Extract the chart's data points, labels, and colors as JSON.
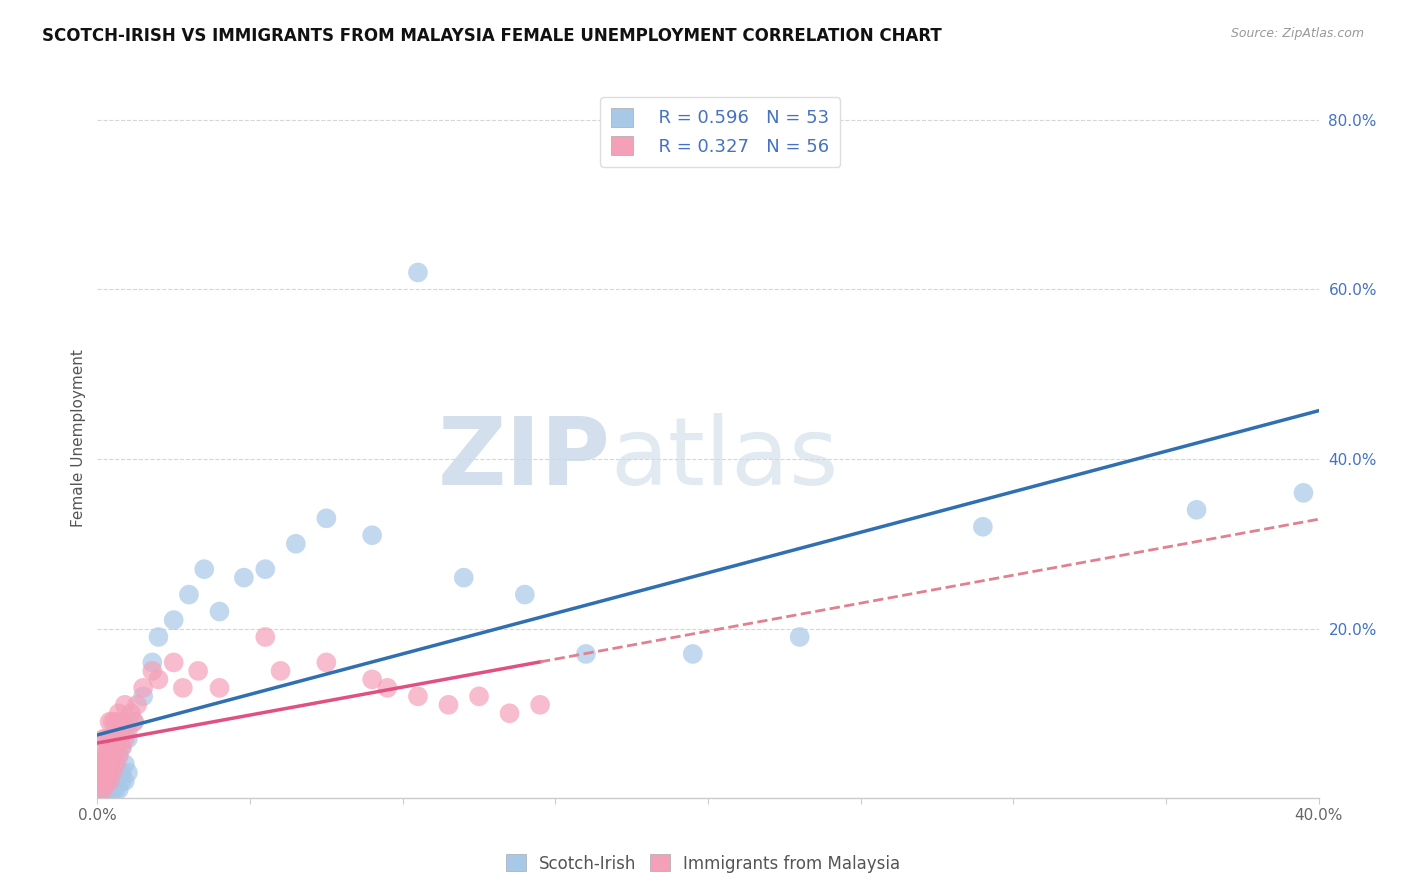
{
  "title": "SCOTCH-IRISH VS IMMIGRANTS FROM MALAYSIA FEMALE UNEMPLOYMENT CORRELATION CHART",
  "source": "Source: ZipAtlas.com",
  "ylabel": "Female Unemployment",
  "xlim": [
    0.0,
    0.4
  ],
  "ylim": [
    0.0,
    0.85
  ],
  "legend_r1": "R = 0.596",
  "legend_n1": "N = 53",
  "legend_r2": "R = 0.327",
  "legend_n2": "N = 56",
  "blue_color": "#a8c8e8",
  "pink_color": "#f4a0b8",
  "blue_line_color": "#3070b0",
  "pink_line_color": "#e05080",
  "pink_dash_color": "#e08090",
  "watermark_zip": "ZIP",
  "watermark_atlas": "atlas",
  "title_fontsize": 12,
  "axis_fontsize": 11,
  "tick_fontsize": 11,
  "blue_x": [
    0.001,
    0.001,
    0.001,
    0.002,
    0.002,
    0.002,
    0.002,
    0.003,
    0.003,
    0.003,
    0.003,
    0.004,
    0.004,
    0.004,
    0.005,
    0.005,
    0.005,
    0.005,
    0.006,
    0.006,
    0.006,
    0.007,
    0.007,
    0.007,
    0.008,
    0.008,
    0.008,
    0.009,
    0.009,
    0.01,
    0.01,
    0.012,
    0.015,
    0.018,
    0.02,
    0.025,
    0.03,
    0.035,
    0.04,
    0.048,
    0.055,
    0.065,
    0.075,
    0.09,
    0.105,
    0.12,
    0.14,
    0.16,
    0.195,
    0.23,
    0.29,
    0.36,
    0.395
  ],
  "blue_y": [
    0.01,
    0.02,
    0.03,
    0.01,
    0.02,
    0.03,
    0.04,
    0.01,
    0.02,
    0.03,
    0.04,
    0.01,
    0.02,
    0.04,
    0.01,
    0.02,
    0.03,
    0.05,
    0.01,
    0.02,
    0.04,
    0.01,
    0.03,
    0.05,
    0.02,
    0.03,
    0.06,
    0.02,
    0.04,
    0.03,
    0.07,
    0.09,
    0.12,
    0.16,
    0.19,
    0.21,
    0.24,
    0.27,
    0.22,
    0.26,
    0.27,
    0.3,
    0.33,
    0.31,
    0.62,
    0.26,
    0.24,
    0.17,
    0.17,
    0.19,
    0.32,
    0.34,
    0.36
  ],
  "pink_x": [
    0.001,
    0.001,
    0.001,
    0.001,
    0.002,
    0.002,
    0.002,
    0.002,
    0.002,
    0.002,
    0.002,
    0.003,
    0.003,
    0.003,
    0.003,
    0.003,
    0.004,
    0.004,
    0.004,
    0.004,
    0.004,
    0.005,
    0.005,
    0.005,
    0.005,
    0.006,
    0.006,
    0.006,
    0.007,
    0.007,
    0.007,
    0.008,
    0.008,
    0.009,
    0.009,
    0.01,
    0.011,
    0.012,
    0.013,
    0.015,
    0.018,
    0.02,
    0.025,
    0.028,
    0.033,
    0.04,
    0.055,
    0.06,
    0.075,
    0.09,
    0.095,
    0.105,
    0.115,
    0.125,
    0.135,
    0.145
  ],
  "pink_y": [
    0.01,
    0.02,
    0.03,
    0.04,
    0.01,
    0.02,
    0.03,
    0.04,
    0.05,
    0.06,
    0.07,
    0.02,
    0.03,
    0.04,
    0.05,
    0.07,
    0.02,
    0.04,
    0.05,
    0.07,
    0.09,
    0.03,
    0.05,
    0.07,
    0.09,
    0.04,
    0.06,
    0.09,
    0.05,
    0.07,
    0.1,
    0.06,
    0.09,
    0.07,
    0.11,
    0.08,
    0.1,
    0.09,
    0.11,
    0.13,
    0.15,
    0.14,
    0.16,
    0.13,
    0.15,
    0.13,
    0.19,
    0.15,
    0.16,
    0.14,
    0.13,
    0.12,
    0.11,
    0.12,
    0.1,
    0.11
  ]
}
